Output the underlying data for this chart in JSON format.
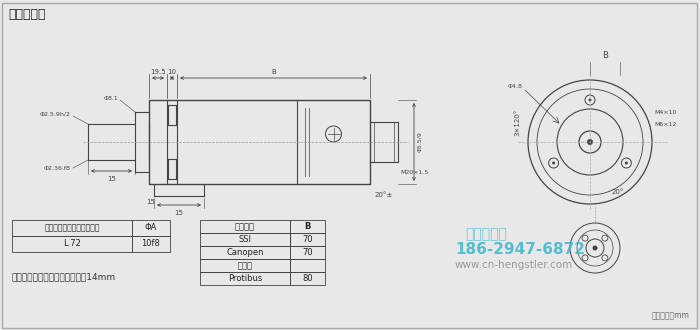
{
  "title": "连接：轴向",
  "bg_color": "#e8e8e8",
  "line_color": "#444444",
  "dim_color": "#444444",
  "table1_header_col1": "安装／防护等级／轴－代码",
  "table1_header_col2": "ΦA",
  "table1_data_col1": "L.72",
  "table1_data_col2": "10f8",
  "table2_header_col1": "电气接口",
  "table2_header_col2": "B",
  "table2_rows": [
    [
      "SSI",
      "70"
    ],
    [
      "Canopen",
      "70"
    ],
    [
      "模拟量",
      ""
    ],
    [
      "Protibus",
      "80"
    ]
  ],
  "footnote": "推荐的电缆密封管的螺纹长度：14mm",
  "unit_note": "单位尺寸：mm",
  "phone": "186-2947-6872",
  "website": "www.cn-hengstler.com",
  "company": "西安德伍拓",
  "phone_color": "#3ab5d0",
  "company_color": "#3ab5d0",
  "website_color": "#888888",
  "border_color": "#999999"
}
